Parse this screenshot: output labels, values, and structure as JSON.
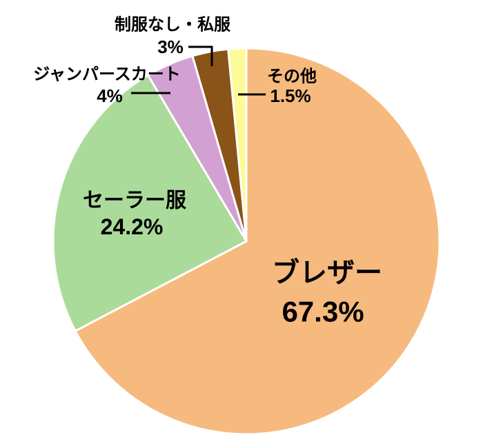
{
  "chart_data": {
    "type": "pie",
    "title": "",
    "unit": "%",
    "start_angle": "12-oclock",
    "direction": "clockwise",
    "slices": [
      {
        "id": "blazer",
        "label": "ブレザー",
        "value": 67.3,
        "value_label": "67.3%",
        "color": "#F6BA7E",
        "label_placement": "inside"
      },
      {
        "id": "sailor",
        "label": "セーラー服",
        "value": 24.2,
        "value_label": "24.2%",
        "color": "#ABDB9A",
        "label_placement": "inside"
      },
      {
        "id": "jumper-skirt",
        "label": "ジャンパースカート",
        "value": 4,
        "value_label": "4%",
        "color": "#D3A0D3",
        "label_placement": "outside"
      },
      {
        "id": "no-uniform",
        "label": "制服なし・私服",
        "value": 3,
        "value_label": "3%",
        "color": "#8A5318",
        "label_placement": "outside"
      },
      {
        "id": "other",
        "label": "その他",
        "value": 1.5,
        "value_label": "1.5%",
        "color": "#FDFA98",
        "label_placement": "outside"
      }
    ],
    "colors": {
      "background": "#FFFFFF",
      "slice_border": "#FFFFFF",
      "text": "#000000",
      "leader_line": "#000000"
    },
    "legend": "none",
    "grid": "off"
  }
}
